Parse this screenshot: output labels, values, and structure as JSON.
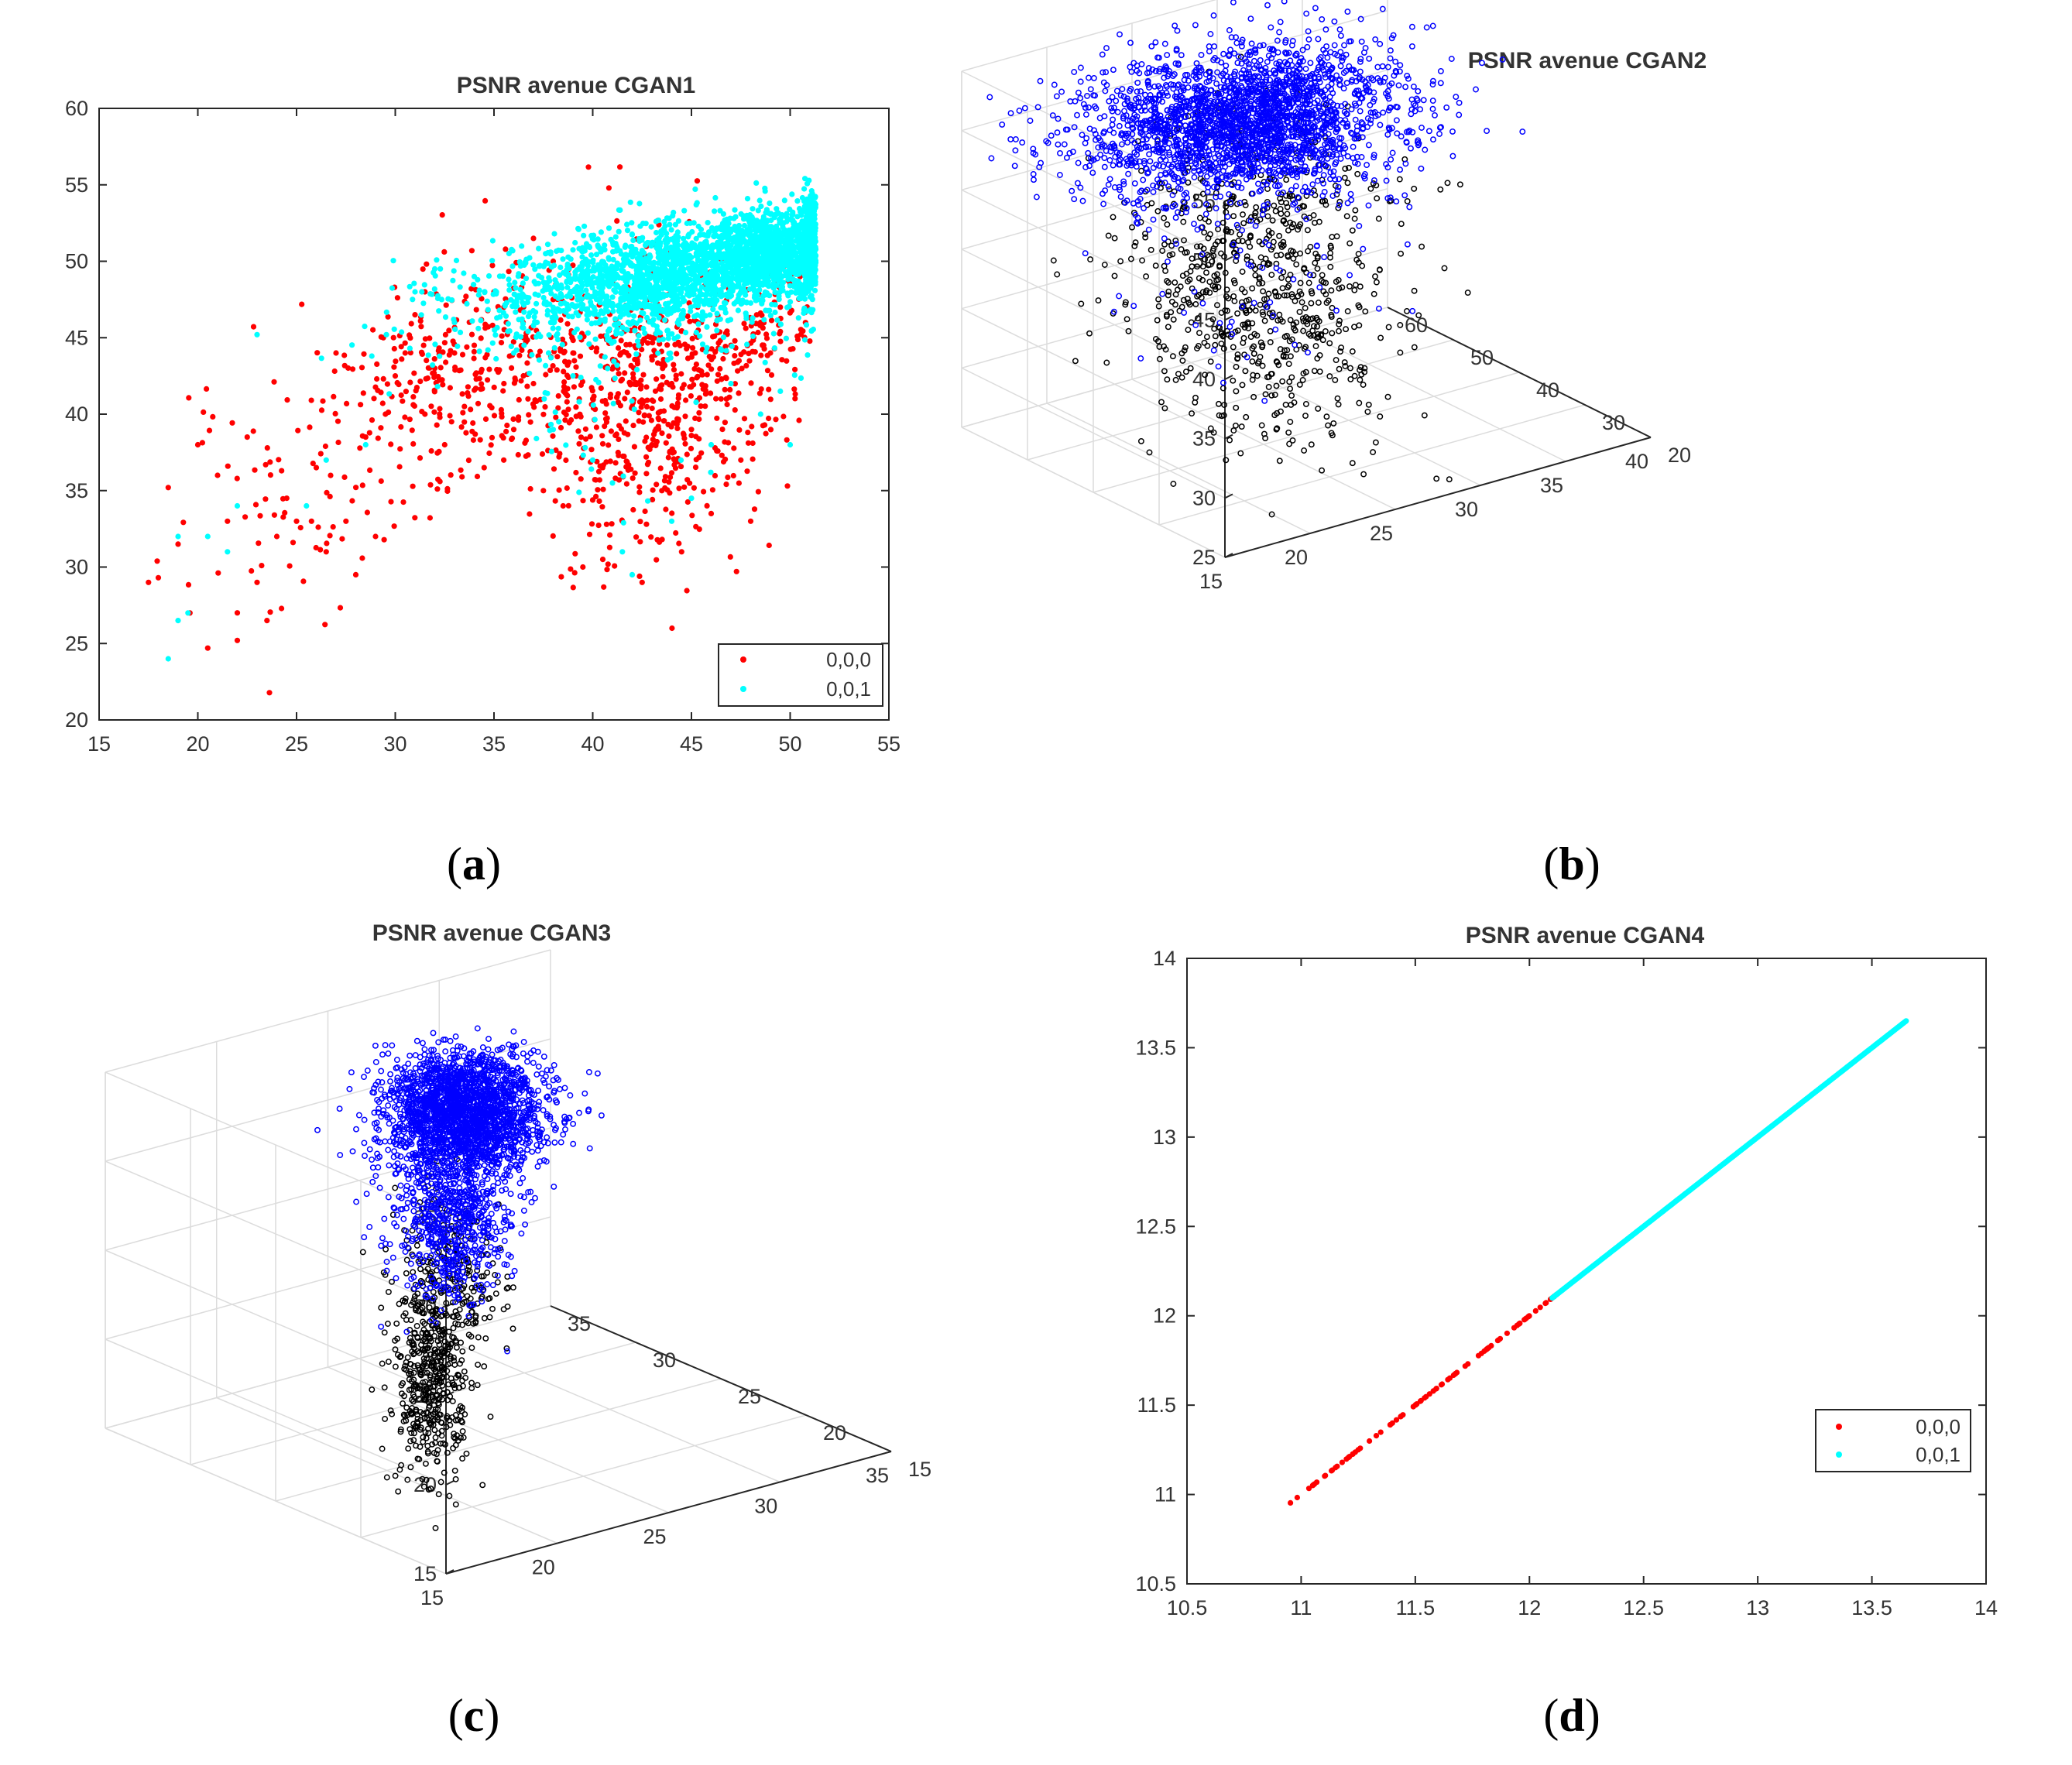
{
  "figure": {
    "captions": {
      "a": "a",
      "b": "b",
      "c": "c",
      "d": "d"
    },
    "caption_open": "(",
    "caption_close": ")"
  },
  "chart_data": [
    {
      "id": "a",
      "type": "scatter",
      "title": "PSNR avenue CGAN1",
      "xlim": [
        15,
        55
      ],
      "ylim": [
        20,
        60
      ],
      "xticks": [
        15,
        20,
        25,
        30,
        35,
        40,
        45,
        50,
        55
      ],
      "yticks": [
        20,
        25,
        30,
        35,
        40,
        45,
        50,
        55,
        60
      ],
      "legend": {
        "position": "bottom-right",
        "entries": [
          "0,0,0",
          "0,0,1"
        ]
      },
      "series": [
        {
          "name": "0,0,0",
          "color": "#ff0000",
          "marker": "dot",
          "points": [
            [
              17.5,
              29
            ],
            [
              18,
              29.3
            ],
            [
              18.5,
              35.2
            ],
            [
              19,
              31.5
            ],
            [
              19.6,
              27
            ],
            [
              20,
              38
            ],
            [
              20.5,
              24.7
            ],
            [
              21,
              36
            ],
            [
              21.5,
              33
            ],
            [
              22,
              25.2
            ],
            [
              22.5,
              38.5
            ],
            [
              23,
              29
            ],
            [
              23.5,
              26.5
            ],
            [
              24,
              32
            ],
            [
              24.5,
              34.5
            ],
            [
              25,
              33
            ],
            [
              26,
              36.5
            ],
            [
              26.5,
              31
            ],
            [
              27,
              44
            ],
            [
              27.5,
              33
            ],
            [
              28,
              29.5
            ],
            [
              28.5,
              38.5
            ],
            [
              29,
              32
            ],
            [
              29.5,
              40
            ],
            [
              30,
              42.5
            ],
            [
              30.5,
              44
            ],
            [
              31,
              46.5
            ],
            [
              31.5,
              40
            ],
            [
              32,
              43
            ],
            [
              32.5,
              38
            ],
            [
              33,
              46
            ],
            [
              33.5,
              40.5
            ],
            [
              34,
              44.5
            ],
            [
              34.5,
              36.5
            ],
            [
              35,
              48
            ],
            [
              35.5,
              42
            ],
            [
              36,
              39
            ],
            [
              36.5,
              45
            ],
            [
              37,
              42
            ],
            [
              37.5,
              35
            ],
            [
              38,
              47.5
            ],
            [
              38.5,
              34
            ],
            [
              39,
              44
            ],
            [
              39.5,
              30
            ],
            [
              40,
              41
            ],
            [
              40.5,
              36.5
            ],
            [
              41,
              45
            ],
            [
              41.5,
              33
            ],
            [
              42,
              40.5
            ],
            [
              42.5,
              29
            ],
            [
              43,
              38
            ],
            [
              43.5,
              35
            ],
            [
              44,
              42
            ],
            [
              44.5,
              31
            ],
            [
              45,
              39
            ],
            [
              45.5,
              46
            ],
            [
              46,
              33.5
            ],
            [
              46.5,
              41
            ],
            [
              47,
              44.5
            ],
            [
              47.5,
              37
            ],
            [
              48,
              33
            ],
            [
              48.5,
              46
            ],
            [
              49,
              44
            ],
            [
              49.5,
              47
            ],
            [
              50,
              48.5
            ],
            [
              50.5,
              49
            ],
            [
              37,
              51.5
            ],
            [
              38,
              50
            ],
            [
              41,
              49
            ],
            [
              43,
              45
            ],
            [
              35.5,
              47
            ],
            [
              33,
              44
            ],
            [
              31.5,
              48
            ]
          ],
          "clusters": [
            {
              "cx": 27,
              "cy": 36,
              "sx": 4.5,
              "sy": 4.5,
              "n": 120,
              "rot": 0.55
            },
            {
              "cx": 34,
              "cy": 43,
              "sx": 3.2,
              "sy": 3.5,
              "n": 280,
              "rot": 0.2
            },
            {
              "cx": 42.5,
              "cy": 41,
              "sx": 2.8,
              "sy": 4.8,
              "n": 520,
              "rot": 0
            },
            {
              "cx": 47,
              "cy": 44,
              "sx": 3,
              "sy": 3,
              "n": 180,
              "rot": 0.3
            }
          ]
        },
        {
          "name": "0,0,1",
          "color": "#00ffff",
          "marker": "dot",
          "points": [
            [
              18.5,
              24
            ],
            [
              19,
              26.5
            ],
            [
              19.5,
              27
            ],
            [
              19,
              32
            ],
            [
              20.5,
              32
            ],
            [
              21.5,
              31
            ],
            [
              22,
              34
            ],
            [
              23,
              45.2
            ],
            [
              25.5,
              34
            ],
            [
              26.5,
              37
            ],
            [
              28.5,
              38
            ],
            [
              31,
              48
            ],
            [
              32,
              49.5
            ],
            [
              33,
              46
            ],
            [
              34,
              49
            ],
            [
              36,
              44
            ],
            [
              38,
              39
            ],
            [
              39,
              42.5
            ],
            [
              40,
              37
            ],
            [
              41,
              35.5
            ],
            [
              41.5,
              31
            ],
            [
              42,
              29.5
            ],
            [
              44,
              33
            ],
            [
              45,
              34.5
            ],
            [
              46,
              38
            ],
            [
              47,
              42
            ],
            [
              48.5,
              40
            ],
            [
              49.5,
              41.5
            ],
            [
              50,
              38
            ]
          ],
          "clusters": [
            {
              "cx": 45,
              "cy": 49.5,
              "sx": 5,
              "sy": 1.6,
              "n": 1800,
              "rot": 0.2
            },
            {
              "cx": 49.5,
              "cy": 50.8,
              "sx": 1.6,
              "sy": 1.2,
              "n": 700,
              "rot": 0
            },
            {
              "cx": 44,
              "cy": 48,
              "sx": 6,
              "sy": 2.4,
              "n": 500,
              "rot": 0.15
            },
            {
              "cx": 40,
              "cy": 42,
              "sx": 3,
              "sy": 5,
              "n": 45,
              "rot": 0
            }
          ]
        }
      ]
    },
    {
      "id": "b",
      "type": "scatter3d",
      "title": "PSNR avenue CGAN2",
      "xlim": [
        15,
        40
      ],
      "ylim": [
        20,
        60
      ],
      "zlim": [
        25,
        55
      ],
      "xticks": [
        15,
        20,
        25,
        30,
        35,
        40
      ],
      "yticks": [
        20,
        30,
        40,
        50,
        60
      ],
      "zticks": [
        25,
        30,
        35,
        40,
        45,
        50,
        55
      ],
      "series": [
        {
          "name": "black",
          "color": "#000000",
          "marker": "circle",
          "clusters": [
            {
              "x": 25,
              "y": 42,
              "z": 40,
              "sx": 3.5,
              "sy": 5,
              "sz": 5.5,
              "n": 650
            },
            {
              "x": 27,
              "y": 38,
              "z": 31,
              "sx": 2.5,
              "sy": 4,
              "sz": 4,
              "n": 140
            }
          ]
        },
        {
          "name": "blue",
          "color": "#0000ff",
          "marker": "circle",
          "clusters": [
            {
              "x": 26,
              "y": 45,
              "z": 50.5,
              "sx": 4,
              "sy": 6,
              "sz": 2.2,
              "n": 2400
            },
            {
              "x": 26,
              "y": 44,
              "z": 39,
              "sx": 4,
              "sy": 5,
              "sz": 5,
              "n": 70
            }
          ]
        }
      ]
    },
    {
      "id": "c",
      "type": "scatter3d",
      "title": "PSNR avenue CGAN3",
      "xlim": [
        15,
        35
      ],
      "ylim": [
        15,
        35
      ],
      "zlim": [
        15,
        35
      ],
      "xticks": [
        15,
        20,
        25,
        30,
        35
      ],
      "yticks": [
        15,
        20,
        25,
        30,
        35
      ],
      "zticks": [
        15,
        20,
        25,
        30,
        35
      ],
      "series": [
        {
          "name": "black",
          "color": "#000000",
          "marker": "circle",
          "clusters": [
            {
              "x": 22,
              "y": 25,
              "z": 19,
              "sx": 0.6,
              "sy": 0.8,
              "sz": 2.5,
              "n": 420
            },
            {
              "x": 23.5,
              "y": 26,
              "z": 24,
              "sx": 0.9,
              "sy": 1,
              "sz": 2.5,
              "n": 260
            }
          ]
        },
        {
          "name": "blue",
          "color": "#0000ff",
          "marker": "circle",
          "clusters": [
            {
              "x": 25,
              "y": 27,
              "z": 32.5,
              "sx": 1.4,
              "sy": 1.5,
              "sz": 1.6,
              "n": 2200
            },
            {
              "x": 24,
              "y": 26.5,
              "z": 27,
              "sx": 1,
              "sy": 1.2,
              "sz": 2.2,
              "n": 650
            }
          ]
        }
      ]
    },
    {
      "id": "d",
      "type": "scatter",
      "title": "PSNR avenue CGAN4",
      "xlim": [
        10.5,
        14
      ],
      "ylim": [
        10.5,
        14
      ],
      "xticks": [
        10.5,
        11,
        11.5,
        12,
        12.5,
        13,
        13.5,
        14
      ],
      "yticks": [
        10.5,
        11,
        11.5,
        12,
        12.5,
        13,
        13.5,
        14
      ],
      "legend": {
        "position": "right",
        "entries": [
          "0,0,0",
          "0,0,1"
        ]
      },
      "series": [
        {
          "name": "0,0,0",
          "color": "#ff0000",
          "marker": "dot",
          "line": [
            10.92,
            12.12
          ],
          "n": 90
        },
        {
          "name": "0,0,1",
          "color": "#00ffff",
          "marker": "dot",
          "line": [
            12.1,
            13.65
          ],
          "n": 420
        }
      ]
    }
  ]
}
